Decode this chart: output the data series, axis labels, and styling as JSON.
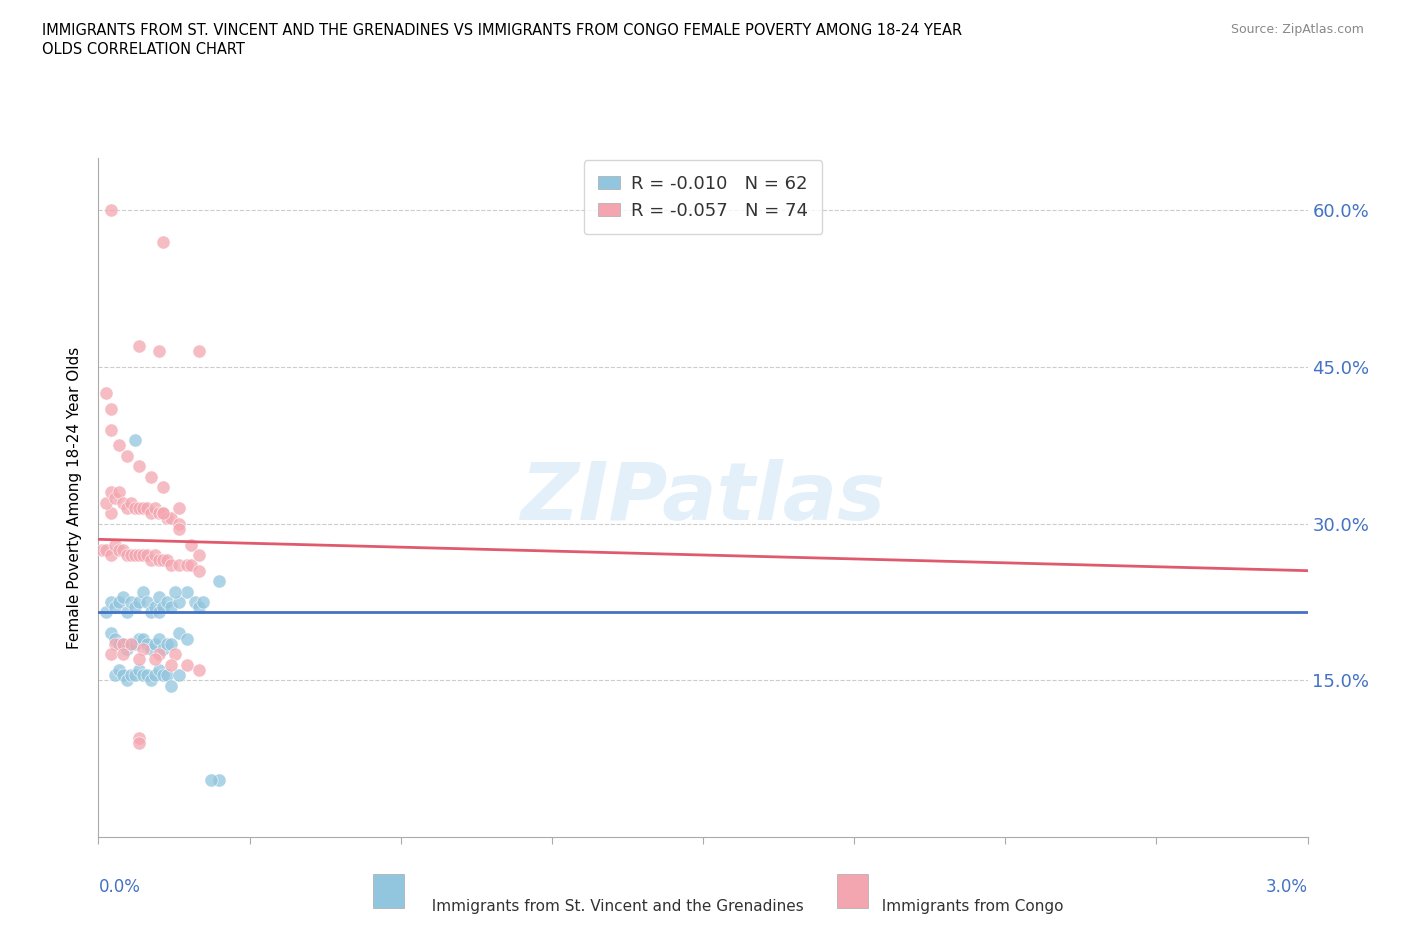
{
  "title_line1": "IMMIGRANTS FROM ST. VINCENT AND THE GRENADINES VS IMMIGRANTS FROM CONGO FEMALE POVERTY AMONG 18-24 YEAR",
  "title_line2": "OLDS CORRELATION CHART",
  "source": "Source: ZipAtlas.com",
  "ylabel": "Female Poverty Among 18-24 Year Olds",
  "yticks": [
    0.0,
    0.15,
    0.3,
    0.45,
    0.6
  ],
  "ytick_labels": [
    "",
    "15.0%",
    "30.0%",
    "45.0%",
    "60.0%"
  ],
  "xlim": [
    0.0,
    0.03
  ],
  "ylim": [
    0.0,
    0.65
  ],
  "watermark": "ZIPatlas",
  "legend": {
    "series1_label": "Immigrants from St. Vincent and the Grenadines",
    "series1_R": "R = -0.010",
    "series1_N": "N = 62",
    "series1_color": "#92c5de",
    "series2_label": "Immigrants from Congo",
    "series2_R": "R = -0.057",
    "series2_N": "N = 74",
    "series2_color": "#f4a6b0"
  },
  "blue_x": [
    0.0002,
    0.0003,
    0.0004,
    0.0005,
    0.0006,
    0.0007,
    0.0008,
    0.0009,
    0.001,
    0.0011,
    0.0012,
    0.0013,
    0.0014,
    0.0015,
    0.0015,
    0.0016,
    0.0017,
    0.0018,
    0.002,
    0.0022,
    0.0024,
    0.0025,
    0.0026,
    0.003,
    0.0003,
    0.0004,
    0.0005,
    0.0006,
    0.0007,
    0.0008,
    0.0009,
    0.001,
    0.0011,
    0.0012,
    0.0013,
    0.0014,
    0.0015,
    0.0016,
    0.0017,
    0.0018,
    0.002,
    0.0022,
    0.0004,
    0.0005,
    0.0006,
    0.0007,
    0.0008,
    0.0009,
    0.001,
    0.0011,
    0.0012,
    0.0013,
    0.0014,
    0.0015,
    0.0016,
    0.0017,
    0.0018,
    0.002,
    0.003,
    0.0028,
    0.0009,
    0.0019
  ],
  "blue_y": [
    0.215,
    0.225,
    0.22,
    0.225,
    0.23,
    0.215,
    0.225,
    0.22,
    0.225,
    0.235,
    0.225,
    0.215,
    0.22,
    0.23,
    0.215,
    0.22,
    0.225,
    0.22,
    0.225,
    0.235,
    0.225,
    0.22,
    0.225,
    0.245,
    0.195,
    0.19,
    0.185,
    0.185,
    0.18,
    0.185,
    0.185,
    0.19,
    0.19,
    0.185,
    0.18,
    0.185,
    0.19,
    0.18,
    0.185,
    0.185,
    0.195,
    0.19,
    0.155,
    0.16,
    0.155,
    0.15,
    0.155,
    0.155,
    0.16,
    0.155,
    0.155,
    0.15,
    0.155,
    0.16,
    0.155,
    0.155,
    0.145,
    0.155,
    0.055,
    0.055,
    0.38,
    0.235
  ],
  "pink_x": [
    0.0001,
    0.0002,
    0.0003,
    0.0003,
    0.0004,
    0.0005,
    0.0006,
    0.0007,
    0.0008,
    0.0009,
    0.001,
    0.0011,
    0.0012,
    0.0013,
    0.0014,
    0.0015,
    0.0016,
    0.0017,
    0.0018,
    0.002,
    0.0022,
    0.0023,
    0.0025,
    0.0002,
    0.0003,
    0.0004,
    0.0005,
    0.0006,
    0.0007,
    0.0008,
    0.0009,
    0.001,
    0.0011,
    0.0012,
    0.0013,
    0.0014,
    0.0015,
    0.0016,
    0.0017,
    0.0018,
    0.002,
    0.0003,
    0.0005,
    0.0007,
    0.001,
    0.0013,
    0.0016,
    0.002,
    0.0004,
    0.0006,
    0.0008,
    0.0011,
    0.0015,
    0.0019,
    0.0003,
    0.0006,
    0.001,
    0.0014,
    0.0018,
    0.0022,
    0.0025,
    0.001,
    0.0015,
    0.0016,
    0.0003,
    0.0016,
    0.002,
    0.0023,
    0.0025,
    0.0025,
    0.0002,
    0.0003,
    0.001,
    0.001
  ],
  "pink_y": [
    0.275,
    0.275,
    0.27,
    0.31,
    0.28,
    0.275,
    0.275,
    0.27,
    0.27,
    0.27,
    0.27,
    0.27,
    0.27,
    0.265,
    0.27,
    0.265,
    0.265,
    0.265,
    0.26,
    0.26,
    0.26,
    0.26,
    0.255,
    0.32,
    0.33,
    0.325,
    0.33,
    0.32,
    0.315,
    0.32,
    0.315,
    0.315,
    0.315,
    0.315,
    0.31,
    0.315,
    0.31,
    0.31,
    0.305,
    0.305,
    0.3,
    0.39,
    0.375,
    0.365,
    0.355,
    0.345,
    0.335,
    0.315,
    0.185,
    0.185,
    0.185,
    0.18,
    0.175,
    0.175,
    0.175,
    0.175,
    0.17,
    0.17,
    0.165,
    0.165,
    0.16,
    0.47,
    0.465,
    0.57,
    0.6,
    0.31,
    0.295,
    0.28,
    0.27,
    0.465,
    0.425,
    0.41,
    0.095,
    0.09
  ],
  "blue_color": "#92c5de",
  "pink_color": "#f4a6b0",
  "blue_trend_x": [
    0.0,
    0.03
  ],
  "blue_trend_y": [
    0.215,
    0.215
  ],
  "pink_trend_x": [
    0.0,
    0.03
  ],
  "pink_trend_y": [
    0.285,
    0.255
  ]
}
